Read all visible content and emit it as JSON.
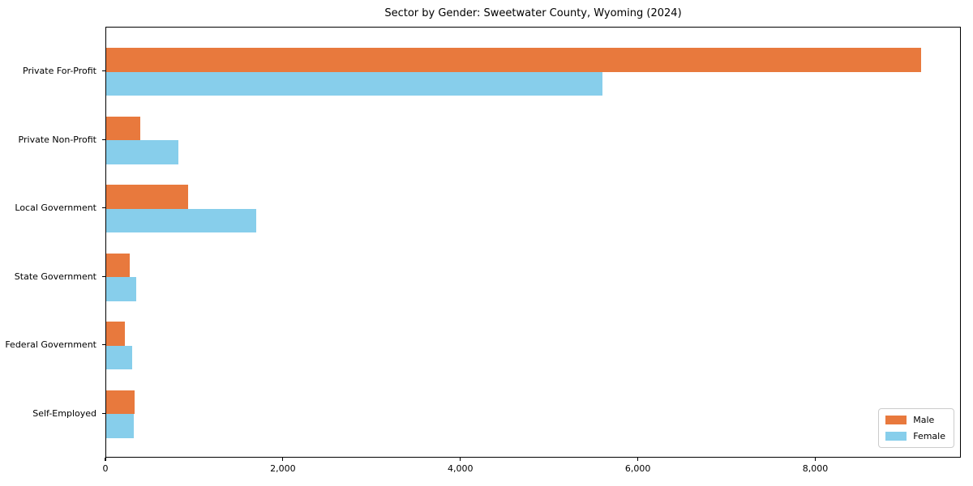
{
  "chart_data": {
    "type": "bar",
    "orientation": "horizontal",
    "title": "Sector by Gender: Sweetwater County, Wyoming (2024)",
    "categories": [
      "Private For-Profit",
      "Private Non-Profit",
      "Local Government",
      "State Government",
      "Federal Government",
      "Self-Employed"
    ],
    "series": [
      {
        "name": "Male",
        "color": "#e8793d",
        "values": [
          9180,
          380,
          920,
          265,
          210,
          320
        ]
      },
      {
        "name": "Female",
        "color": "#87ceeb",
        "values": [
          5590,
          815,
          1690,
          340,
          290,
          315
        ]
      }
    ],
    "xlabel": "",
    "ylabel": "",
    "xlim": [
      0,
      9640
    ],
    "xticks": [
      0,
      2000,
      4000,
      6000,
      8000
    ],
    "xtick_labels": [
      "0",
      "2,000",
      "4,000",
      "6,000",
      "8,000"
    ],
    "grid": false,
    "legend": {
      "position": "lower right",
      "entries": [
        "Male",
        "Female"
      ]
    }
  },
  "colors": {
    "male": "#e8793d",
    "female": "#87ceeb",
    "text": "#000000",
    "axis": "#000000",
    "background": "#ffffff",
    "legend_border": "#cccccc"
  }
}
